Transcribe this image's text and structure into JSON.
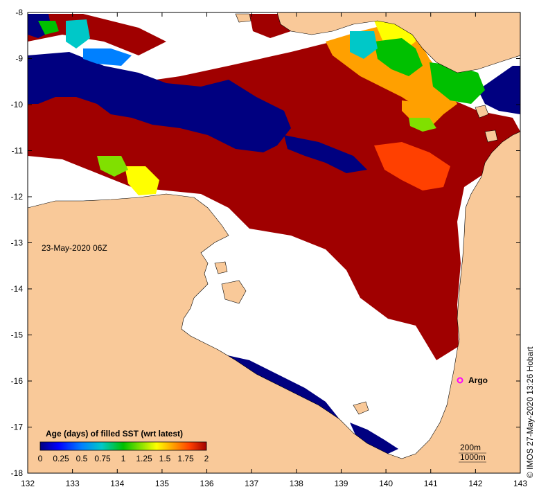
{
  "map": {
    "date_label": "23-May-2020 06Z",
    "marker_label": "Argo",
    "credit": "© IMOS 27-May-2020 13:26 Hobart",
    "scale_200": "200m",
    "scale_1000": "1000m",
    "x_ticks": [
      "132",
      "133",
      "134",
      "135",
      "136",
      "137",
      "138",
      "139",
      "140",
      "141",
      "142",
      "143"
    ],
    "y_ticks": [
      "-8",
      "-9",
      "-10",
      "-11",
      "-12",
      "-13",
      "-14",
      "-15",
      "-16",
      "-17",
      "-18"
    ],
    "colors": {
      "land": "#f9c999",
      "nodata": "#ffffff",
      "age_0": "#000080",
      "age_2": "#a00000",
      "marker": "#ff00ff"
    }
  },
  "colorbar": {
    "title": "Age (days) of filled SST (wrt latest)",
    "labels": [
      "0",
      "0.25",
      "0.5",
      "0.75",
      "1",
      "1.25",
      "1.5",
      "1.75",
      "2"
    ],
    "stops": [
      "#000080",
      "#0000ff",
      "#0080ff",
      "#00c8c8",
      "#00c000",
      "#80e000",
      "#ffff00",
      "#ffa000",
      "#ff4000",
      "#a00000"
    ]
  }
}
